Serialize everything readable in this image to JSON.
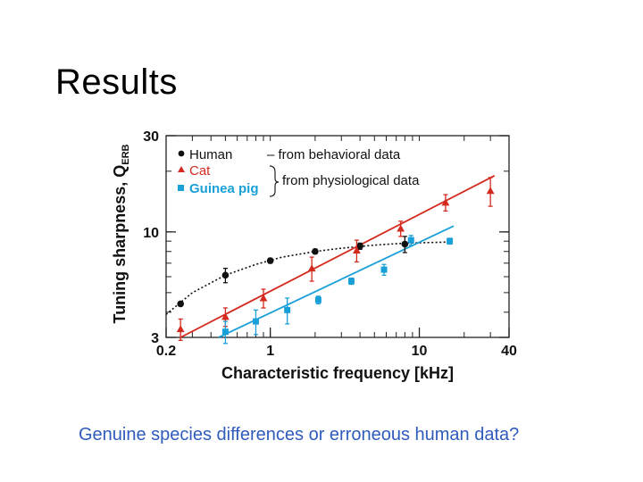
{
  "slide": {
    "title": "Results",
    "caption": "Genuine species differences or erroneous human data?"
  },
  "colors": {
    "human": "#111111",
    "cat": "#d42a1e",
    "guinea_pig": "#1aa0d8",
    "caption": "#2f5bbd"
  },
  "chart_data": {
    "type": "scatter",
    "xlabel": "Characteristic frequency [kHz]",
    "ylabel_main": "Tuning sharpness, Q",
    "ylabel_sub": "ERB",
    "xscale": "log",
    "yscale": "log",
    "xlim": [
      0.2,
      40
    ],
    "ylim": [
      3,
      30
    ],
    "xticks": [
      0.2,
      1,
      10,
      40
    ],
    "xtick_labels": [
      "0.2",
      "1",
      "10",
      "40"
    ],
    "yticks": [
      3,
      10,
      30
    ],
    "ytick_labels": [
      "3",
      "10",
      "30"
    ],
    "legend_position": "top-left",
    "legend_notes": {
      "behavioral": "– from behavioral data",
      "physiological": "from physiological data"
    },
    "series": [
      {
        "name": "Human",
        "marker": "circle",
        "source": "behavioral",
        "x": [
          0.25,
          0.5,
          1,
          2,
          4,
          8
        ],
        "y": [
          4.4,
          6.1,
          7.2,
          8.0,
          8.5,
          8.7
        ],
        "err": [
          0.1,
          0.5,
          0.2,
          0.2,
          0.3,
          0.8
        ],
        "fit": "curve",
        "fit_x": [
          0.2,
          0.3,
          0.5,
          0.8,
          1.2,
          2,
          3,
          5,
          8,
          15
        ],
        "fit_y": [
          3.9,
          5.0,
          6.1,
          6.9,
          7.5,
          8.0,
          8.3,
          8.6,
          8.8,
          8.9
        ]
      },
      {
        "name": "Cat",
        "marker": "triangle",
        "source": "physiological",
        "x": [
          0.25,
          0.5,
          0.9,
          1.9,
          3.8,
          7.5,
          15,
          30
        ],
        "y": [
          3.3,
          3.8,
          4.7,
          6.6,
          8.1,
          10.4,
          14.0,
          16.0
        ],
        "err": [
          0.4,
          0.4,
          0.5,
          0.9,
          1.0,
          0.9,
          1.3,
          2.6
        ],
        "fit": "line",
        "fit_x": [
          0.25,
          32
        ],
        "fit_y": [
          3.0,
          19.0
        ]
      },
      {
        "name": "Guinea pig",
        "marker": "square",
        "source": "physiological",
        "x": [
          0.5,
          0.8,
          1.3,
          2.1,
          3.5,
          5.8,
          8.8,
          16
        ],
        "y": [
          3.2,
          3.6,
          4.1,
          4.6,
          5.7,
          6.5,
          9.1,
          9.0
        ],
        "err": [
          0.4,
          0.5,
          0.6,
          0.2,
          0.2,
          0.4,
          0.5,
          0.3
        ],
        "fit": "line",
        "fit_x": [
          0.45,
          17
        ],
        "fit_y": [
          3.0,
          10.7
        ]
      }
    ]
  }
}
